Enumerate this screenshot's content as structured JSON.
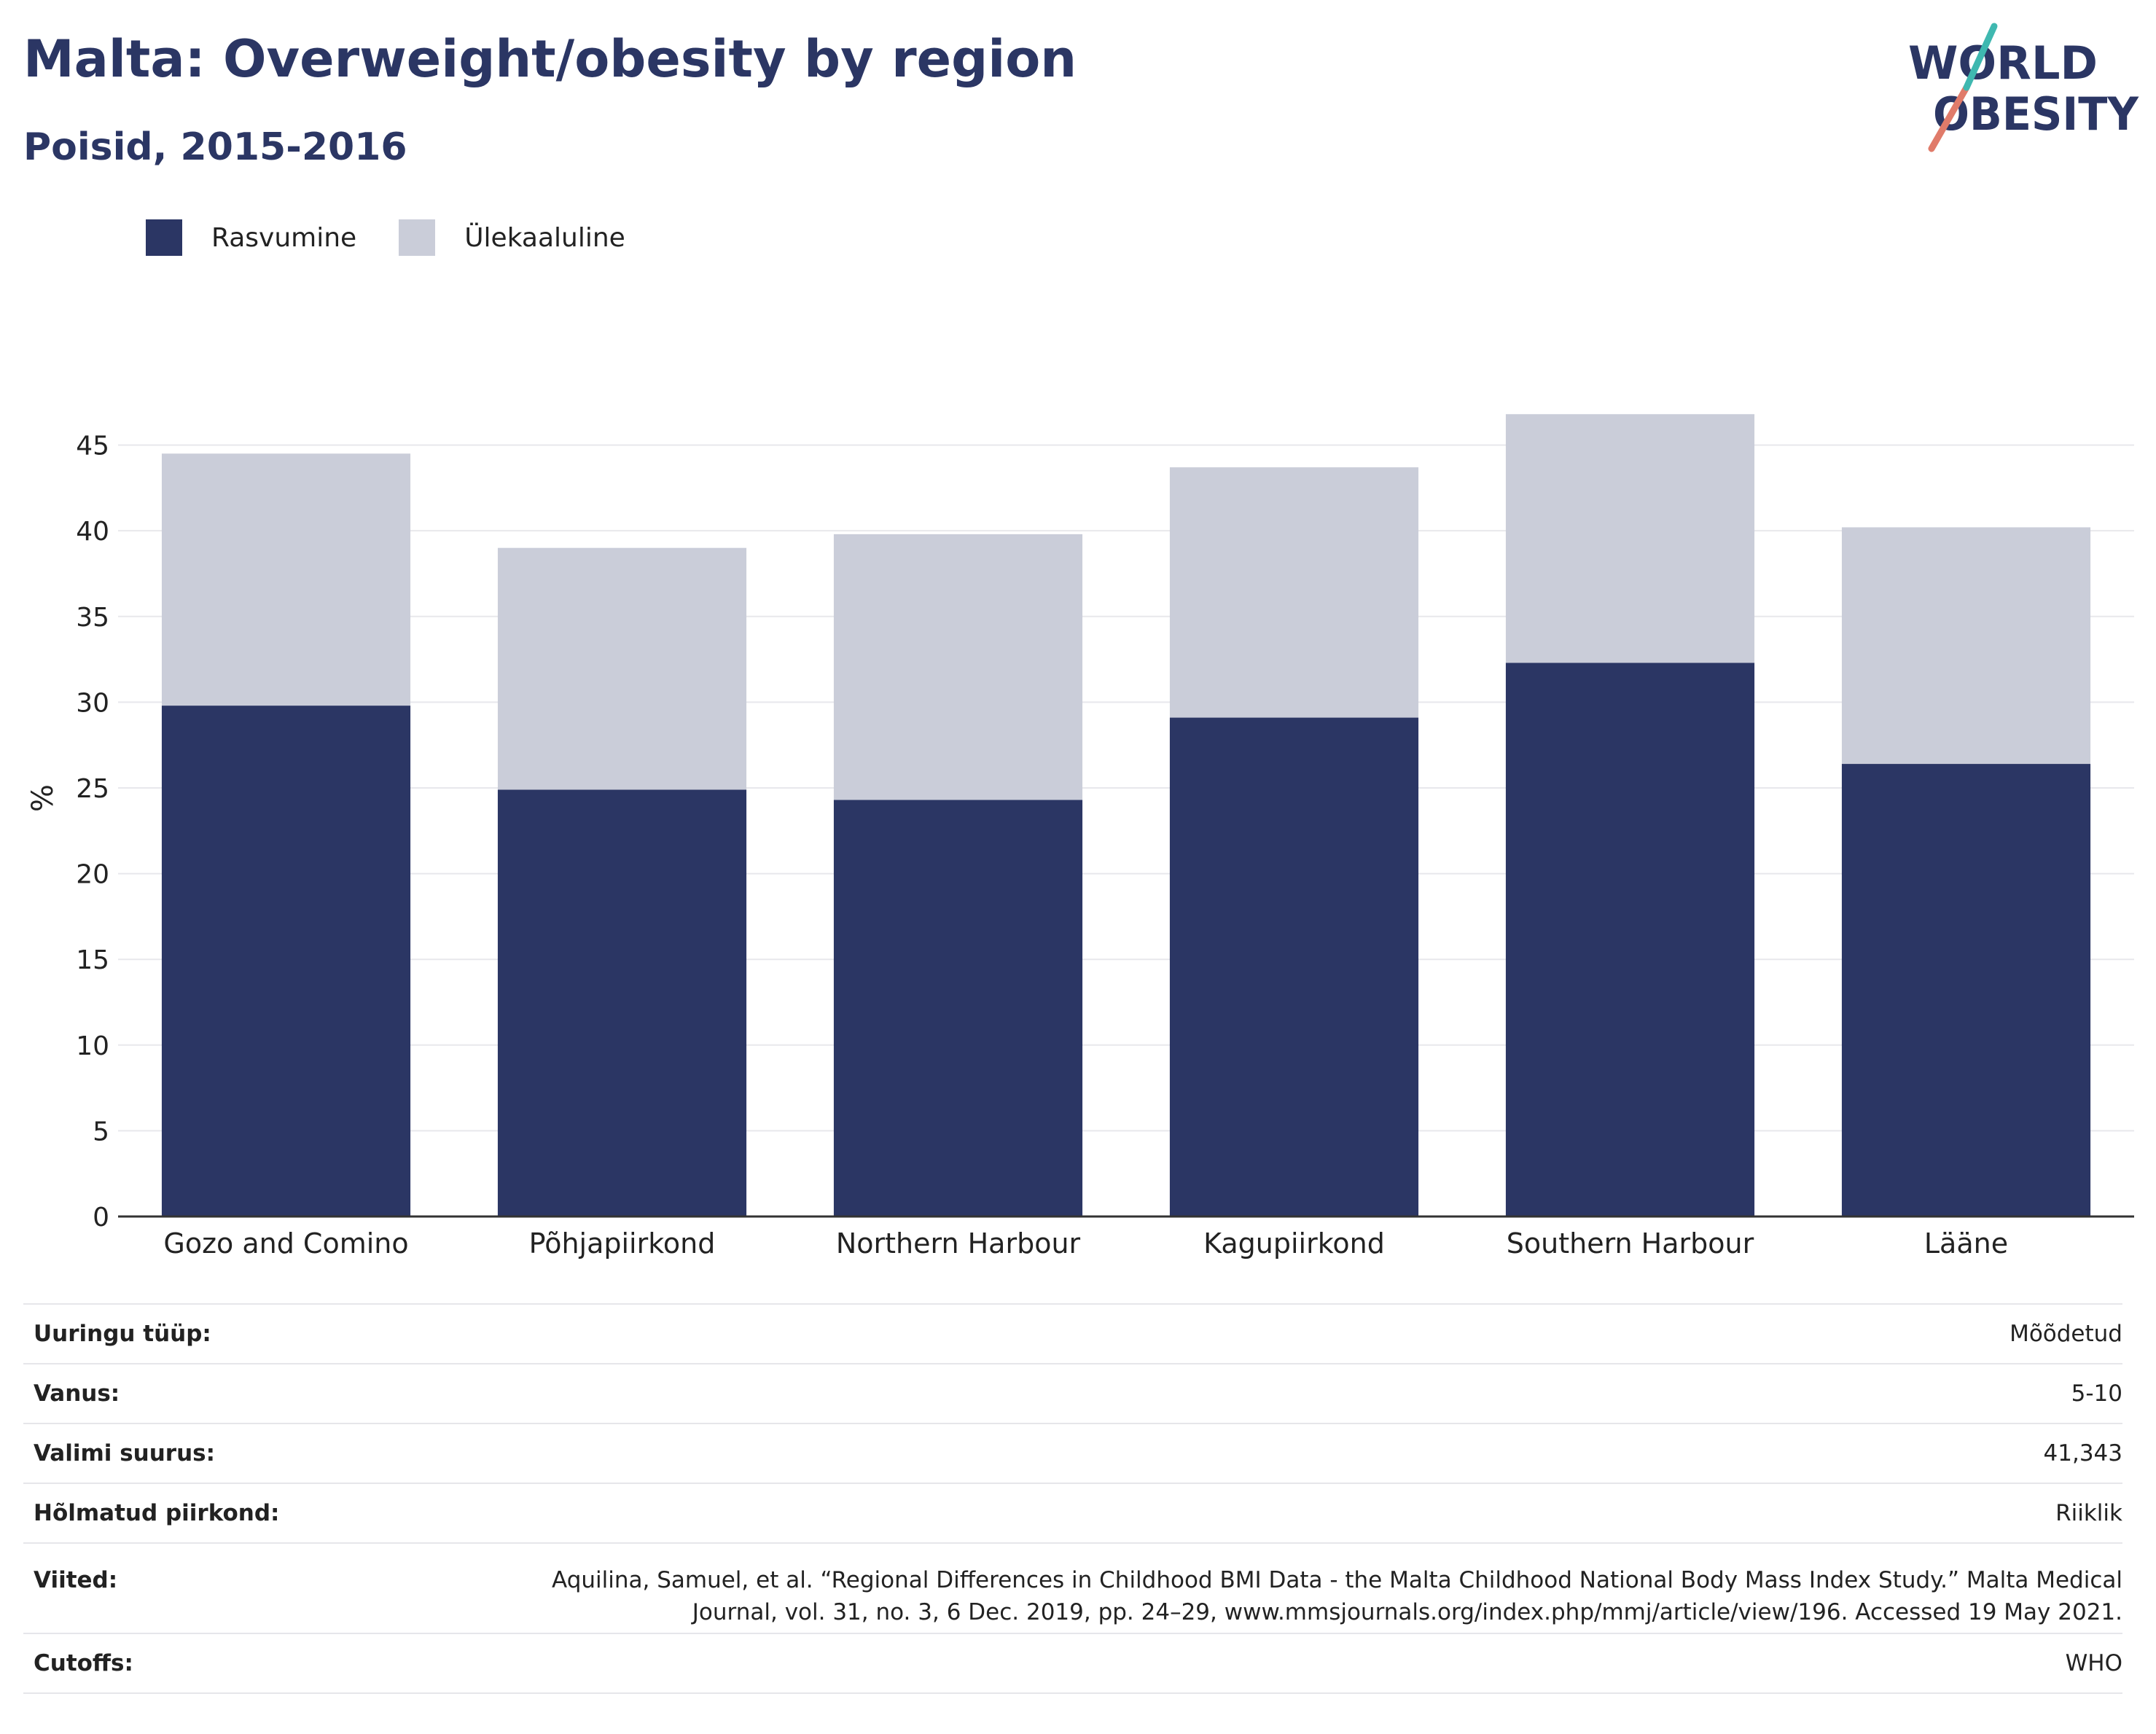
{
  "header": {
    "title": "Malta: Overweight/obesity by region",
    "subtitle": "Poisid, 2015-2016"
  },
  "logo": {
    "line1": "WORLD",
    "line2": "OBESITY"
  },
  "colors": {
    "obesity": "#2b3664",
    "overweight": "#cacdd9",
    "title": "#2b3664"
  },
  "chart_data": {
    "type": "bar",
    "stacked": true,
    "categories": [
      "Gozo and Comino",
      "Põhjapiirkond",
      "Northern Harbour",
      "Kagupiirkond",
      "Southern Harbour",
      "Lääne"
    ],
    "series": [
      {
        "name": "Rasvumine",
        "color": "#2b3664",
        "values": [
          29.8,
          24.9,
          24.3,
          29.1,
          32.3,
          26.4
        ]
      },
      {
        "name": "Ülekaaluline",
        "color": "#cacdd9",
        "values": [
          14.7,
          14.1,
          15.5,
          14.6,
          14.5,
          13.8
        ]
      }
    ],
    "ylabel": "%",
    "ylim": [
      0,
      48
    ],
    "yticks": [
      0,
      5,
      10,
      15,
      20,
      25,
      30,
      35,
      40,
      45
    ],
    "grid": true,
    "legend": "top-left"
  },
  "info": [
    {
      "label": "Uuringu tüüp:",
      "value": "Mõõdetud"
    },
    {
      "label": "Vanus:",
      "value": "5-10"
    },
    {
      "label": "Valimi suurus:",
      "value": "41,343"
    },
    {
      "label": "Hõlmatud piirkond:",
      "value": "Riiklik"
    },
    {
      "label": "Viited:",
      "value": "Aquilina, Samuel, et al. “Regional Differences in Childhood BMI Data - the Malta Childhood National Body Mass Index Study.” Malta Medical Journal, vol. 31, no. 3, 6 Dec. 2019, pp. 24–29, www.mmsjournals.org/index.php/mmj/article/view/196. Accessed 19 May 2021."
    },
    {
      "label": "Cutoffs:",
      "value": "WHO"
    }
  ]
}
